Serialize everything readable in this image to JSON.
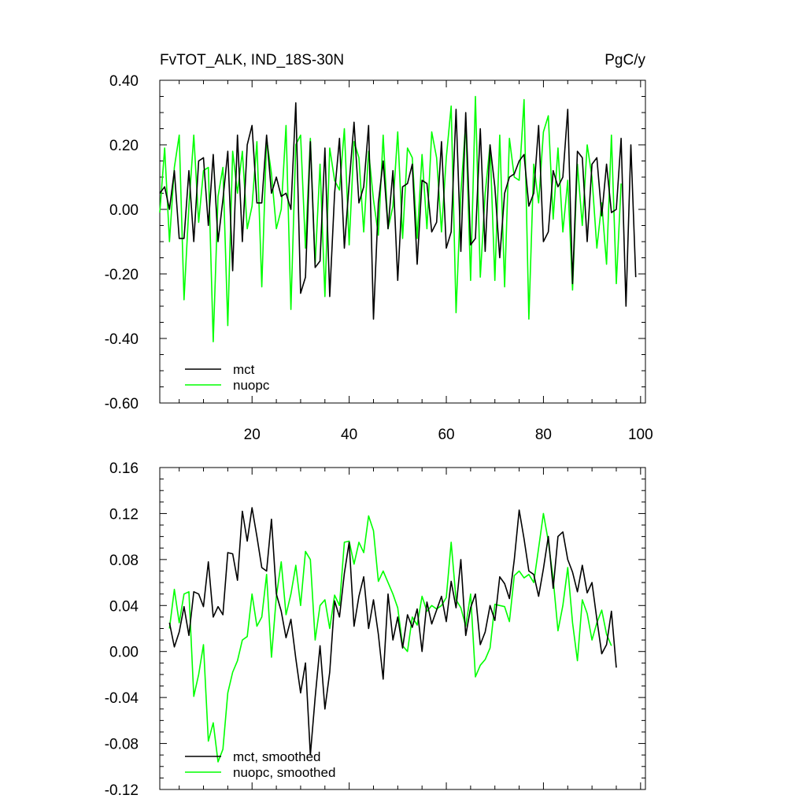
{
  "figure": {
    "title_left": "FvTOT_ALK, IND_18S-30N",
    "title_right": "PgC/y"
  },
  "chart_data": [
    {
      "type": "line",
      "title": "FvTOT_ALK, IND_18S-30N",
      "units": "PgC/y",
      "xlim": [
        1,
        101
      ],
      "ylim": [
        -0.6,
        0.4
      ],
      "xticks": [
        20,
        40,
        60,
        80,
        100
      ],
      "xtick_labels": [
        "20",
        "40",
        "60",
        "80",
        "100"
      ],
      "yticks": [
        0.4,
        0.2,
        0.0,
        -0.2,
        -0.4,
        -0.6
      ],
      "ytick_labels": [
        "0.40",
        "0.20",
        "0.00",
        "-0.20",
        "-0.40",
        "-0.60"
      ],
      "grid": false,
      "legend_placement": "bottom-left",
      "x_start": 1,
      "series": [
        {
          "name": "mct",
          "color": "#000000",
          "values": [
            0.05,
            0.07,
            0.0,
            0.12,
            -0.09,
            -0.09,
            0.12,
            -0.1,
            0.15,
            0.16,
            -0.05,
            0.17,
            -0.1,
            0.03,
            0.18,
            -0.19,
            0.23,
            -0.1,
            0.2,
            0.26,
            0.02,
            0.02,
            0.23,
            0.05,
            0.1,
            0.04,
            0.05,
            0.0,
            0.33,
            -0.26,
            -0.21,
            0.21,
            -0.18,
            -0.16,
            0.19,
            -0.27,
            0.05,
            0.22,
            -0.12,
            0.08,
            0.27,
            0.02,
            0.07,
            0.26,
            -0.34,
            0.02,
            0.15,
            -0.06,
            0.12,
            -0.22,
            0.07,
            0.08,
            0.14,
            -0.17,
            0.09,
            0.08,
            -0.07,
            -0.04,
            0.21,
            -0.12,
            -0.07,
            0.31,
            -0.13,
            0.3,
            -0.11,
            -0.09,
            0.25,
            -0.13,
            0.2,
            0.07,
            -0.15,
            0.05,
            0.1,
            0.11,
            0.15,
            0.17,
            0.01,
            0.05,
            0.26,
            -0.1,
            -0.07,
            0.12,
            0.07,
            0.1,
            0.31,
            -0.23,
            0.18,
            0.16,
            -0.1,
            0.14,
            0.16,
            -0.02,
            0.14,
            -0.01,
            0.0,
            0.22,
            -0.3,
            0.2,
            -0.21
          ]
        },
        {
          "name": "nuopc",
          "color": "#00ff00",
          "values": [
            -0.01,
            0.19,
            -0.1,
            0.13,
            0.23,
            -0.28,
            0.01,
            0.23,
            -0.04,
            0.12,
            0.13,
            -0.41,
            0.04,
            0.13,
            -0.36,
            0.18,
            0.05,
            0.18,
            -0.06,
            0.01,
            0.21,
            -0.24,
            0.22,
            0.11,
            -0.06,
            0.0,
            0.26,
            -0.31,
            0.2,
            0.23,
            -0.12,
            0.22,
            -0.17,
            0.14,
            -0.27,
            0.19,
            0.09,
            0.06,
            0.25,
            -0.11,
            0.21,
            0.16,
            -0.07,
            0.18,
            0.03,
            -0.08,
            0.23,
            -0.06,
            0.01,
            0.24,
            -0.09,
            0.19,
            0.16,
            -0.09,
            0.17,
            -0.06,
            0.24,
            0.16,
            -0.07,
            0.16,
            0.32,
            -0.32,
            0.05,
            0.27,
            -0.22,
            0.35,
            -0.21,
            0.05,
            0.2,
            -0.22,
            0.23,
            -0.24,
            0.22,
            0.1,
            0.09,
            0.34,
            -0.34,
            0.14,
            0.02,
            0.24,
            0.29,
            -0.03,
            0.19,
            -0.07,
            0.09,
            -0.25,
            0.14,
            -0.05,
            0.2,
            0.1,
            -0.12,
            0.02,
            -0.17,
            0.23,
            -0.23,
            0.08
          ]
        }
      ]
    },
    {
      "type": "line",
      "title": "",
      "xlim": [
        1,
        101
      ],
      "ylim": [
        -0.12,
        0.16
      ],
      "xticks": [
        20,
        40,
        60,
        80,
        100
      ],
      "yticks": [
        0.16,
        0.12,
        0.08,
        0.04,
        0.0,
        -0.04,
        -0.08,
        -0.12
      ],
      "ytick_labels": [
        "0.16",
        "0.12",
        "0.08",
        "0.04",
        "0.00",
        "-0.04",
        "-0.08",
        "-0.12"
      ],
      "grid": false,
      "legend_placement": "bottom-left",
      "x_start": 3,
      "series": [
        {
          "name": "mct, smoothed",
          "color": "#000000",
          "values": [
            0.025,
            0.004,
            0.017,
            0.039,
            0.014,
            0.052,
            0.05,
            0.039,
            0.078,
            0.03,
            0.039,
            0.032,
            0.086,
            0.085,
            0.062,
            0.122,
            0.096,
            0.125,
            0.1,
            0.073,
            0.07,
            0.115,
            0.05,
            0.035,
            0.012,
            0.028,
            -0.006,
            -0.036,
            -0.01,
            -0.09,
            -0.04,
            0.005,
            -0.05,
            -0.018,
            0.044,
            0.03,
            0.068,
            0.095,
            0.022,
            0.048,
            0.065,
            0.02,
            0.045,
            0.015,
            -0.024,
            0.05,
            0.01,
            0.03,
            0.003,
            0.032,
            0.021,
            0.037,
            0.0,
            0.043,
            0.024,
            0.036,
            0.048,
            0.026,
            0.061,
            0.038,
            0.08,
            0.014,
            0.038,
            0.05,
            0.006,
            0.017,
            0.04,
            0.027,
            0.065,
            0.059,
            0.046,
            0.08,
            0.123,
            0.098,
            0.07,
            0.067,
            0.048,
            0.072,
            0.1,
            0.055,
            0.1,
            0.104,
            0.08,
            0.069,
            0.052,
            0.075,
            0.051,
            0.06,
            0.028,
            -0.002,
            0.006,
            0.035,
            -0.014
          ]
        },
        {
          "name": "nuopc, smoothed",
          "color": "#00ff00",
          "values": [
            0.02,
            0.054,
            0.025,
            0.05,
            0.052,
            -0.039,
            -0.02,
            0.006,
            -0.078,
            -0.062,
            -0.096,
            -0.085,
            -0.036,
            -0.018,
            -0.008,
            0.01,
            0.013,
            0.05,
            0.022,
            0.03,
            0.067,
            -0.005,
            0.048,
            0.078,
            0.032,
            0.05,
            0.075,
            0.04,
            0.087,
            0.08,
            0.01,
            0.04,
            0.045,
            0.02,
            0.049,
            0.04,
            0.095,
            0.096,
            0.076,
            0.095,
            0.086,
            0.118,
            0.105,
            0.061,
            0.07,
            0.06,
            0.05,
            0.038,
            0.005,
            -0.0,
            0.03,
            0.023,
            0.048,
            0.035,
            0.04,
            0.037,
            0.04,
            0.047,
            0.095,
            0.045,
            0.038,
            0.022,
            0.05,
            -0.022,
            -0.012,
            -0.007,
            0.003,
            0.041,
            0.04,
            0.039,
            0.026,
            0.066,
            0.07,
            0.064,
            0.067,
            0.06,
            0.09,
            0.12,
            0.096,
            0.063,
            0.018,
            0.04,
            0.073,
            0.025,
            -0.008,
            0.045,
            0.033,
            0.01,
            0.025,
            0.036,
            0.015,
            0.005
          ]
        }
      ]
    }
  ]
}
